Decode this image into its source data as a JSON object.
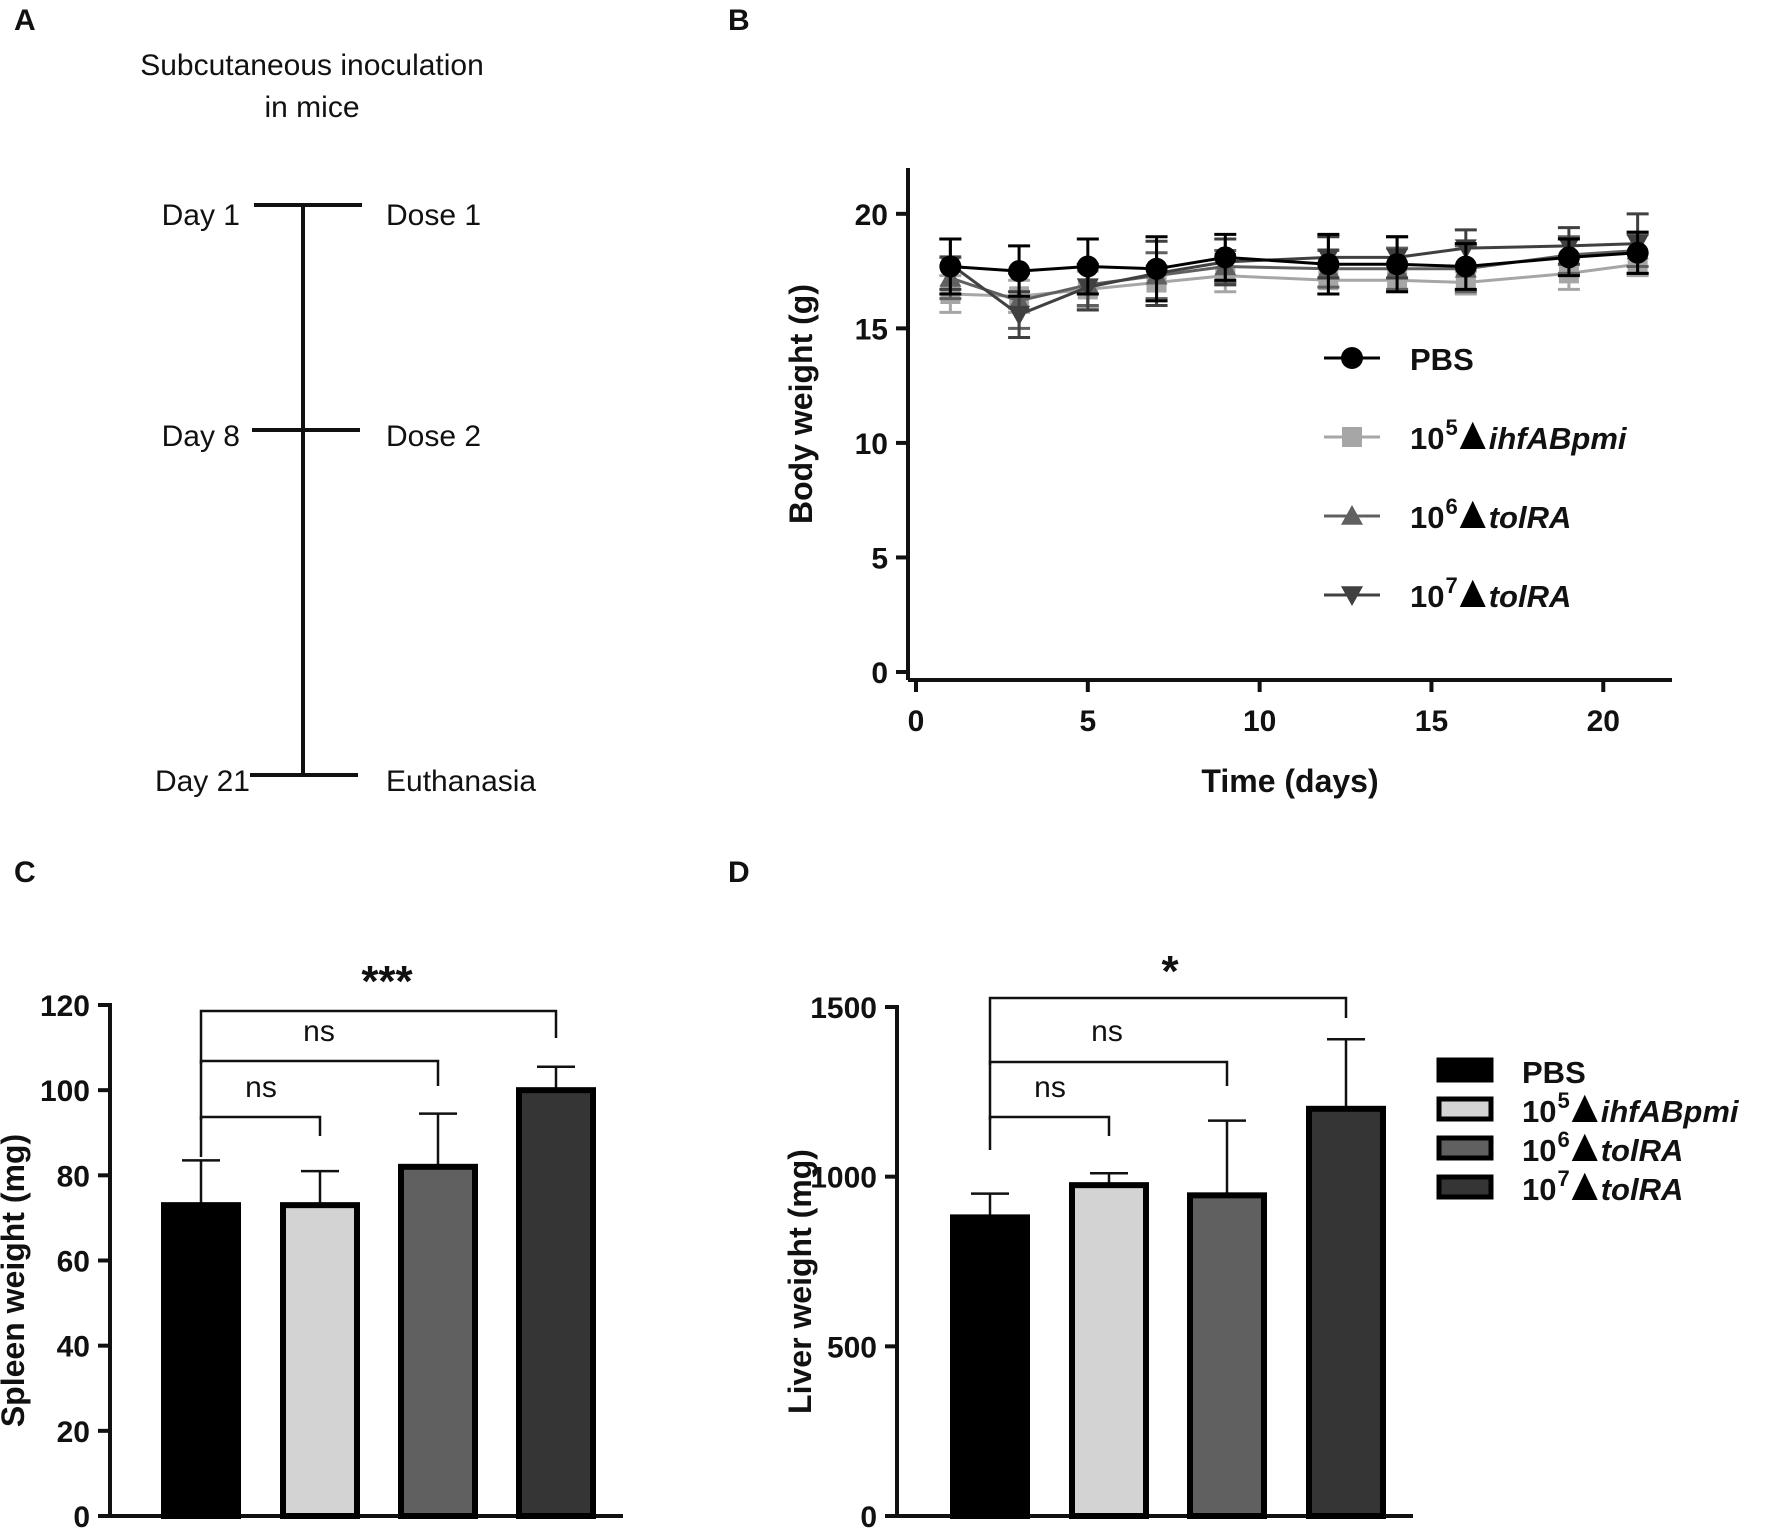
{
  "panels": {
    "A": {
      "letter": "A",
      "title_line1": "Subcutaneous inoculation",
      "title_line2": "in mice",
      "events": [
        {
          "day": 1,
          "day_label": "Day 1",
          "event": "Dose 1"
        },
        {
          "day": 8,
          "day_label": "Day 8",
          "event": "Dose 2"
        },
        {
          "day": 21,
          "day_label": "Day 21",
          "event": "Euthanasia"
        }
      ]
    },
    "B": {
      "letter": "B"
    },
    "C": {
      "letter": "C"
    },
    "D": {
      "letter": "D"
    }
  },
  "chart_data": [
    {
      "panel": "B",
      "type": "line",
      "xlabel": "Time (days)",
      "ylabel": "Body weight (g)",
      "xlim": [
        0,
        22
      ],
      "ylim": [
        0,
        22
      ],
      "xticks": [
        0,
        5,
        10,
        15,
        20
      ],
      "yticks": [
        0,
        5,
        10,
        15,
        20
      ],
      "legend_position": "right",
      "x": [
        1,
        3,
        5,
        7,
        9,
        12,
        14,
        16,
        19,
        21
      ],
      "series": [
        {
          "key": "pbs",
          "name_base": "PBS",
          "name_exp": "",
          "name_italic": "",
          "marker": "circle",
          "color": "#000000",
          "values": [
            17.7,
            17.5,
            17.7,
            17.6,
            18.1,
            17.8,
            17.8,
            17.7,
            18.1,
            18.3
          ],
          "errors": [
            1.2,
            1.1,
            1.2,
            1.4,
            1.0,
            1.3,
            1.2,
            1.0,
            0.8,
            0.9
          ]
        },
        {
          "key": "ihf",
          "name_base": "10",
          "name_exp": "5",
          "name_italic": "ihfABpmi",
          "marker": "square",
          "color": "#a6a6a6",
          "values": [
            16.5,
            16.4,
            16.7,
            17.0,
            17.3,
            17.1,
            17.1,
            17.0,
            17.4,
            17.8
          ],
          "errors": [
            0.8,
            0.7,
            0.8,
            0.7,
            0.7,
            0.6,
            0.5,
            0.5,
            0.7,
            0.5
          ]
        },
        {
          "key": "tol6",
          "name_base": "10",
          "name_exp": "6",
          "name_italic": "tolRA",
          "marker": "triangle-up",
          "color": "#606060",
          "values": [
            17.2,
            16.2,
            16.9,
            17.3,
            17.7,
            17.6,
            17.6,
            17.6,
            18.2,
            18.4
          ],
          "errors": [
            0.9,
            1.2,
            0.9,
            1.0,
            0.7,
            0.8,
            0.9,
            1.0,
            0.8,
            0.7
          ]
        },
        {
          "key": "tol7",
          "name_base": "10",
          "name_exp": "7",
          "name_italic": "tolRA",
          "marker": "triangle-down",
          "color": "#404040",
          "values": [
            17.8,
            15.6,
            16.8,
            17.4,
            17.9,
            18.1,
            18.1,
            18.5,
            18.6,
            18.7
          ],
          "errors": [
            1.1,
            1.0,
            1.0,
            1.4,
            1.0,
            0.9,
            0.9,
            0.8,
            0.8,
            1.3
          ]
        }
      ]
    },
    {
      "panel": "C",
      "type": "bar",
      "ylabel": "Spleen weight (mg)",
      "ylim": [
        0,
        120
      ],
      "yticks": [
        0,
        20,
        40,
        60,
        80,
        100,
        120
      ],
      "categories": [
        "PBS",
        "10^5 ihfABpmi",
        "10^6 tolRA",
        "10^7 tolRA"
      ],
      "values": [
        73,
        73,
        82,
        100
      ],
      "errors": [
        10.5,
        8,
        12.5,
        5.5
      ],
      "colors": [
        "#000000",
        "#d3d3d3",
        "#606060",
        "#353535"
      ],
      "comparisons": [
        {
          "from": 0,
          "to": 1,
          "label": "ns"
        },
        {
          "from": 0,
          "to": 2,
          "label": "ns"
        },
        {
          "from": 0,
          "to": 3,
          "label": "***"
        }
      ]
    },
    {
      "panel": "D",
      "type": "bar",
      "ylabel": "Liver weight (mg)",
      "ylim": [
        0,
        1500
      ],
      "yticks": [
        0,
        500,
        1000,
        1500
      ],
      "categories": [
        "PBS",
        "10^5 ihfABpmi",
        "10^6 tolRA",
        "10^7 tolRA"
      ],
      "values": [
        880,
        975,
        945,
        1200
      ],
      "errors": [
        70,
        35,
        220,
        205
      ],
      "colors": [
        "#000000",
        "#d3d3d3",
        "#606060",
        "#353535"
      ],
      "comparisons": [
        {
          "from": 0,
          "to": 1,
          "label": "ns"
        },
        {
          "from": 0,
          "to": 2,
          "label": "ns"
        },
        {
          "from": 0,
          "to": 3,
          "label": "*"
        }
      ],
      "legend": [
        {
          "name_base": "PBS",
          "name_exp": "",
          "name_italic": "",
          "color": "#000000"
        },
        {
          "name_base": "10",
          "name_exp": "5",
          "name_italic": "ihfABpmi",
          "color": "#d3d3d3"
        },
        {
          "name_base": "10",
          "name_exp": "6",
          "name_italic": "tolRA",
          "color": "#606060"
        },
        {
          "name_base": "10",
          "name_exp": "7",
          "name_italic": "tolRA",
          "color": "#353535"
        }
      ]
    }
  ]
}
